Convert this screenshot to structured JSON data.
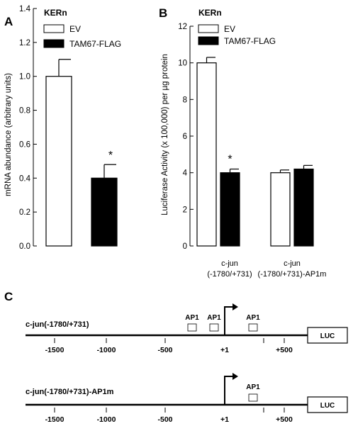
{
  "chart_data": [
    {
      "type": "bar",
      "panel": "A",
      "legend_title": "KERn",
      "ylabel": "mRNA abundance (arbitrary units)",
      "ylim": [
        0,
        1.4
      ],
      "yticks": [
        "0.0",
        "0.2",
        "0.4",
        "0.6",
        "0.8",
        "1.0",
        "1.2",
        "1.4"
      ],
      "series": [
        {
          "name": "EV",
          "color": "#ffffff",
          "values": [
            1.0
          ],
          "errors": [
            0.1
          ]
        },
        {
          "name": "TAM67-FLAG",
          "color": "#000000",
          "values": [
            0.4
          ],
          "errors": [
            0.08
          ],
          "annotation": "*"
        }
      ],
      "legend_position": "top"
    },
    {
      "type": "bar",
      "panel": "B",
      "legend_title": "KERn",
      "ylabel": "Luciferase Activity (x 100,000) per µg protein",
      "ylim": [
        0,
        12
      ],
      "yticks": [
        "0",
        "2",
        "4",
        "6",
        "8",
        "10",
        "12"
      ],
      "categories": [
        {
          "line1": "c-jun",
          "line2": "(-1780/+731)"
        },
        {
          "line1": "c-jun",
          "line2": "(-1780/+731)-AP1m"
        }
      ],
      "series": [
        {
          "name": "EV",
          "color": "#ffffff",
          "values": [
            10.0,
            4.0
          ],
          "errors": [
            0.3,
            0.15
          ]
        },
        {
          "name": "TAM67-FLAG",
          "color": "#000000",
          "values": [
            4.0,
            4.2
          ],
          "errors": [
            0.2,
            0.2
          ]
        }
      ],
      "annotations": [
        {
          "series": "TAM67-FLAG",
          "category": 0,
          "text": "*"
        }
      ],
      "legend_position": "top"
    }
  ],
  "panel_labels": {
    "a": "A",
    "b": "B",
    "c": "C"
  },
  "diagram": {
    "constructs": [
      {
        "label": "c-jun(-1780/+731)",
        "ap1_sites": [
          -300,
          -100,
          300
        ],
        "reporter": "LUC"
      },
      {
        "label": "c-jun(-1780/+731)-AP1m",
        "ap1_sites": [
          300
        ],
        "reporter": "LUC"
      }
    ],
    "ap1_label": "AP1",
    "axis_ticks": [
      {
        "pos": -1500,
        "label": "-1500"
      },
      {
        "pos": -1000,
        "label": "-1000"
      },
      {
        "pos": -500,
        "label": "-500"
      },
      {
        "pos": 1,
        "label": "+1"
      },
      {
        "pos": 500,
        "label": "+500"
      }
    ]
  }
}
